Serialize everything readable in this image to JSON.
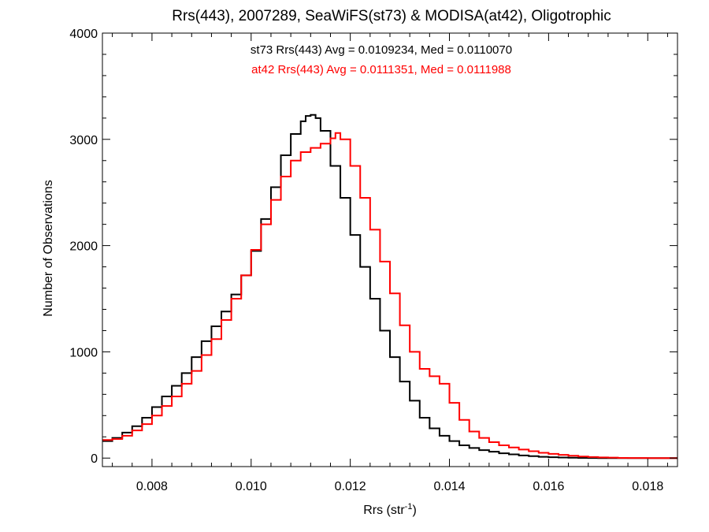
{
  "chart_data": {
    "type": "line",
    "title": "Rrs(443), 2007289, SeaWiFS(st73) & MODISA(at42), Oligotrophic",
    "xlabel": {
      "main": "Rrs (str",
      "sup": "-1",
      "close": ")"
    },
    "ylabel": "Number of Observations",
    "xlim": [
      0.007,
      0.0186
    ],
    "ylim": [
      -80,
      4000
    ],
    "x_ticks": [
      {
        "value": 0.008,
        "label": "0.008"
      },
      {
        "value": 0.01,
        "label": "0.010"
      },
      {
        "value": 0.012,
        "label": "0.012"
      },
      {
        "value": 0.014,
        "label": "0.014"
      },
      {
        "value": 0.016,
        "label": "0.016"
      },
      {
        "value": 0.018,
        "label": "0.018"
      }
    ],
    "y_ticks": [
      {
        "value": 0,
        "label": "0"
      },
      {
        "value": 1000,
        "label": "1000"
      },
      {
        "value": 2000,
        "label": "2000"
      },
      {
        "value": 3000,
        "label": "3000"
      },
      {
        "value": 4000,
        "label": "4000"
      }
    ],
    "annotations": [
      {
        "text": "st73 Rrs(443) Avg = 0.0109234, Med = 0.0110070",
        "color": "#000000"
      },
      {
        "text": "at42 Rrs(443) Avg = 0.0111351, Med = 0.0111988",
        "color": "#ff0000"
      }
    ],
    "series": [
      {
        "name": "st73",
        "color": "#000000",
        "x": [
          0.007,
          0.0072,
          0.0074,
          0.0076,
          0.0078,
          0.008,
          0.0082,
          0.0084,
          0.0086,
          0.0088,
          0.009,
          0.0092,
          0.0094,
          0.0096,
          0.0098,
          0.01,
          0.0102,
          0.0104,
          0.0106,
          0.0108,
          0.011,
          0.0111,
          0.0112,
          0.0113,
          0.0114,
          0.0116,
          0.0118,
          0.012,
          0.0122,
          0.0124,
          0.0126,
          0.0128,
          0.013,
          0.0132,
          0.0134,
          0.0136,
          0.0138,
          0.014,
          0.0142,
          0.0144,
          0.0146,
          0.0148,
          0.015,
          0.0152,
          0.0154,
          0.0156,
          0.0158,
          0.016,
          0.0162,
          0.0164,
          0.0166,
          0.0168,
          0.017,
          0.0172,
          0.0174,
          0.0176,
          0.0178,
          0.018,
          0.0182,
          0.0184,
          0.0186
        ],
        "y": [
          160,
          190,
          240,
          300,
          380,
          480,
          580,
          680,
          800,
          950,
          1100,
          1240,
          1380,
          1540,
          1720,
          1950,
          2250,
          2550,
          2850,
          3050,
          3170,
          3220,
          3230,
          3200,
          3080,
          2750,
          2450,
          2100,
          1800,
          1500,
          1200,
          950,
          720,
          540,
          380,
          280,
          210,
          160,
          120,
          95,
          75,
          60,
          45,
          35,
          25,
          18,
          12,
          8,
          5,
          3,
          2,
          1,
          0,
          0,
          0,
          0,
          0,
          0,
          0,
          0,
          0
        ]
      },
      {
        "name": "at42",
        "color": "#ff0000",
        "x": [
          0.007,
          0.0072,
          0.0074,
          0.0076,
          0.0078,
          0.008,
          0.0082,
          0.0084,
          0.0086,
          0.0088,
          0.009,
          0.0092,
          0.0094,
          0.0096,
          0.0098,
          0.01,
          0.0102,
          0.0104,
          0.0106,
          0.0108,
          0.011,
          0.0112,
          0.0114,
          0.0116,
          0.0117,
          0.0118,
          0.012,
          0.0122,
          0.0124,
          0.0126,
          0.0128,
          0.013,
          0.0132,
          0.0134,
          0.0136,
          0.0138,
          0.014,
          0.0142,
          0.0144,
          0.0146,
          0.0148,
          0.015,
          0.0152,
          0.0154,
          0.0156,
          0.0158,
          0.016,
          0.0162,
          0.0164,
          0.0166,
          0.0168,
          0.017,
          0.0172,
          0.0174,
          0.0176,
          0.0178,
          0.018,
          0.0182,
          0.0184,
          0.0186
        ],
        "y": [
          170,
          180,
          210,
          260,
          320,
          400,
          490,
          580,
          700,
          820,
          970,
          1120,
          1300,
          1500,
          1720,
          1960,
          2200,
          2430,
          2650,
          2800,
          2880,
          2920,
          2960,
          3010,
          3060,
          3000,
          2750,
          2450,
          2150,
          1850,
          1550,
          1250,
          1000,
          840,
          770,
          700,
          520,
          360,
          250,
          190,
          150,
          120,
          100,
          80,
          65,
          50,
          40,
          30,
          22,
          15,
          10,
          6,
          4,
          2,
          1,
          1,
          0,
          0,
          0,
          0
        ]
      }
    ]
  }
}
